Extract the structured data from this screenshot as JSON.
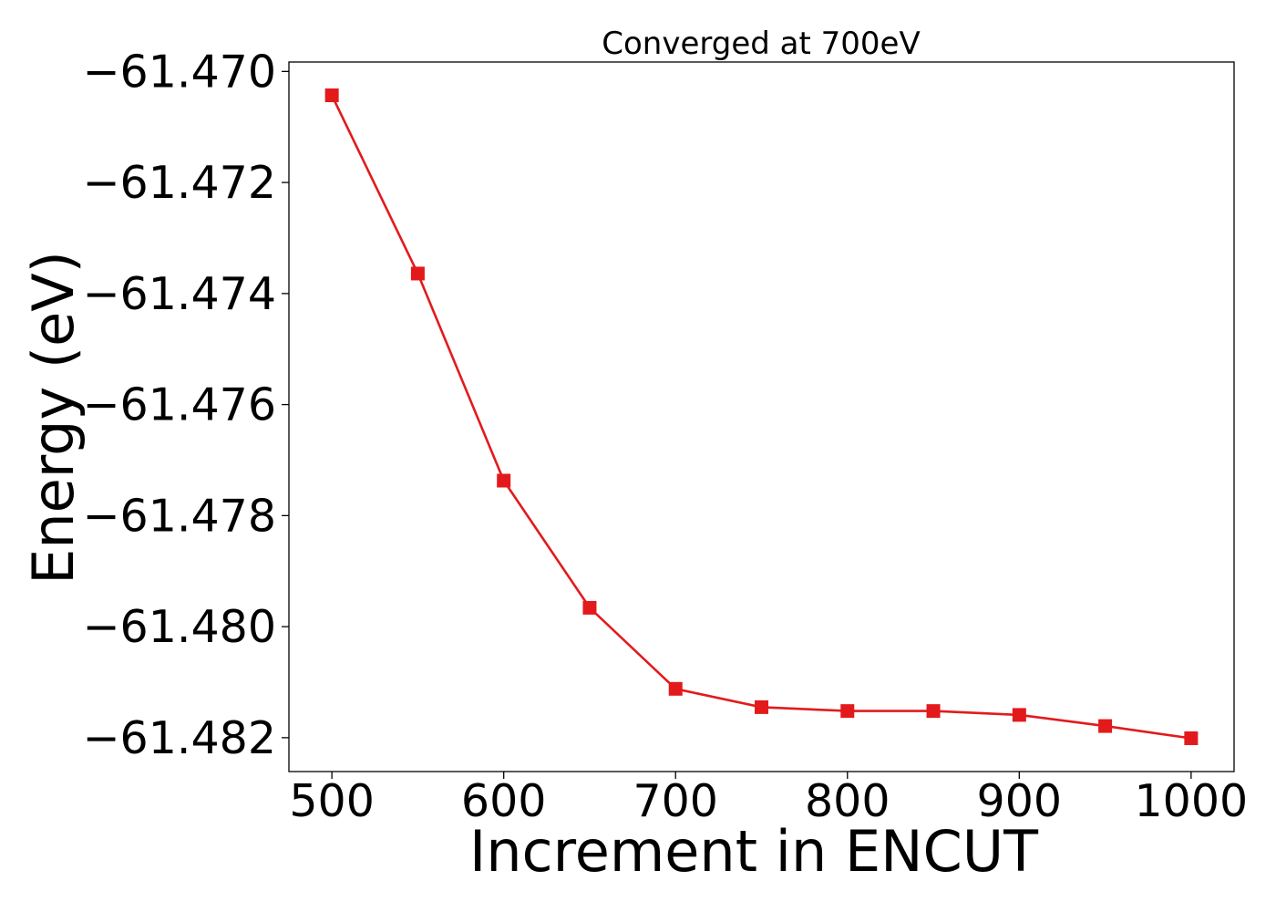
{
  "chart_data": {
    "type": "line",
    "title": "Converged at 700eV",
    "xlabel": "Increment in ENCUT",
    "ylabel": "Energy (eV)",
    "x": [
      500,
      550,
      600,
      650,
      700,
      750,
      800,
      850,
      900,
      950,
      1000
    ],
    "series": [
      {
        "values": [
          -61.47043,
          -61.47364,
          -61.47737,
          -61.47966,
          -61.48112,
          -61.48145,
          -61.48152,
          -61.48152,
          -61.48159,
          -61.48179,
          -61.48201
        ],
        "color": "#e31a1c",
        "marker": "square"
      }
    ],
    "xlim": [
      475,
      1025
    ],
    "ylim": [
      -61.48261,
      -61.46983
    ],
    "xticks": [
      500,
      600,
      700,
      800,
      900,
      1000
    ],
    "xtick_labels": [
      "500",
      "600",
      "700",
      "800",
      "900",
      "1000"
    ],
    "yticks": [
      -61.482,
      -61.48,
      -61.478,
      -61.476,
      -61.474,
      -61.472,
      -61.47
    ],
    "ytick_labels": [
      "−61.482",
      "−61.480",
      "−61.478",
      "−61.476",
      "−61.474",
      "−61.472",
      "−61.470"
    ],
    "grid": false,
    "legend": false
  }
}
